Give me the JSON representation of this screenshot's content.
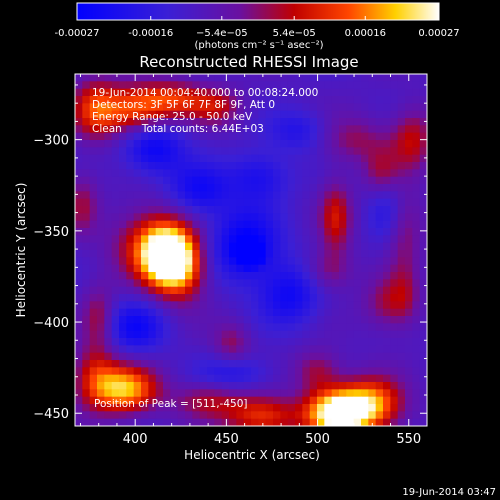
{
  "chart_data": {
    "type": "heatmap",
    "title": "Reconstructed RHESSI Image",
    "xlabel": "Heliocentric X (arcsec)",
    "ylabel": "Heliocentric Y (arcsec)",
    "xlim": [
      367,
      560
    ],
    "ylim": [
      -457,
      -264
    ],
    "x_ticks": [
      400,
      450,
      500,
      550
    ],
    "y_ticks": [
      -300,
      -350,
      -400,
      -450
    ],
    "colorbar": {
      "colormap": "blue-purple-red-yellow-white",
      "range": [
        -0.00027,
        0.00027
      ],
      "tick_values": [
        -0.00027,
        -0.00016,
        -5.4e-05,
        5.4e-05,
        0.00016,
        0.00027
      ],
      "tick_labels": [
        "-0.00027",
        "-0.00016",
        "−5.4e−05",
        "5.4e−05",
        "0.00016",
        "0.00027"
      ],
      "unit_label": "(photons cm⁻² s⁻¹ asec⁻²)"
    },
    "annotations": [
      "19-Jun-2014 00:04:40.000 to 00:08:24.000",
      "Detectors: 3F 5F 6F 7F 8F 9F, Att 0",
      "Energy Range: 25.0 - 50.0 keV",
      "Clean      Total counts: 6.44E+03"
    ],
    "peak_label": "Position of Peak = [511,-450]",
    "sources": [
      {
        "x": 418,
        "y": -364,
        "amp": 0.00036,
        "sx": 10,
        "sy": 11
      },
      {
        "x": 410,
        "y": -357,
        "amp": 0.00018,
        "sx": 15,
        "sy": 14
      },
      {
        "x": 425,
        "y": -373,
        "amp": 0.00016,
        "sx": 10,
        "sy": 12
      },
      {
        "x": 398,
        "y": -284,
        "amp": 0.0002,
        "sx": 13,
        "sy": 9
      },
      {
        "x": 420,
        "y": -278,
        "amp": 0.00018,
        "sx": 14,
        "sy": 7
      },
      {
        "x": 378,
        "y": -283,
        "amp": 0.00017,
        "sx": 9,
        "sy": 12
      },
      {
        "x": 445,
        "y": -282,
        "amp": 0.00012,
        "sx": 10,
        "sy": 7
      },
      {
        "x": 520,
        "y": -300,
        "amp": 0.0001,
        "sx": 14,
        "sy": 9
      },
      {
        "x": 552,
        "y": -300,
        "amp": 0.00014,
        "sx": 8,
        "sy": 12
      },
      {
        "x": 547,
        "y": -347,
        "amp": 0.00013,
        "sx": 7,
        "sy": 15
      },
      {
        "x": 510,
        "y": -343,
        "amp": 0.00015,
        "sx": 6,
        "sy": 14
      },
      {
        "x": 535,
        "y": -318,
        "amp": 0.0001,
        "sx": 7,
        "sy": 9
      },
      {
        "x": 538,
        "y": -390,
        "amp": 0.00011,
        "sx": 9,
        "sy": 10
      },
      {
        "x": 548,
        "y": -385,
        "amp": 8e-05,
        "sx": 6,
        "sy": 12
      },
      {
        "x": 506,
        "y": -372,
        "amp": 0.0001,
        "sx": 9,
        "sy": 8
      },
      {
        "x": 500,
        "y": -427,
        "amp": 0.00012,
        "sx": 9,
        "sy": 8
      },
      {
        "x": 511,
        "y": -450,
        "amp": 0.0004,
        "sx": 12,
        "sy": 9
      },
      {
        "x": 530,
        "y": -445,
        "amp": 0.00025,
        "sx": 12,
        "sy": 10
      },
      {
        "x": 470,
        "y": -452,
        "amp": 0.0002,
        "sx": 14,
        "sy": 8
      },
      {
        "x": 395,
        "y": -437,
        "amp": 0.00028,
        "sx": 12,
        "sy": 9
      },
      {
        "x": 378,
        "y": -430,
        "amp": 0.00016,
        "sx": 9,
        "sy": 12
      },
      {
        "x": 440,
        "y": -443,
        "amp": 0.00012,
        "sx": 14,
        "sy": 7
      },
      {
        "x": 453,
        "y": -412,
        "amp": 0.0001,
        "sx": 7,
        "sy": 8
      },
      {
        "x": 380,
        "y": -398,
        "amp": 0.00012,
        "sx": 6,
        "sy": 12
      },
      {
        "x": 371,
        "y": -335,
        "amp": 0.0001,
        "sx": 6,
        "sy": 12
      },
      {
        "x": 463,
        "y": -362,
        "amp": -0.00038,
        "sx": 4,
        "sy": 4
      },
      {
        "x": 460,
        "y": -358,
        "amp": -0.00018,
        "sx": 14,
        "sy": 14
      },
      {
        "x": 410,
        "y": -305,
        "amp": -0.00016,
        "sx": 12,
        "sy": 10
      },
      {
        "x": 435,
        "y": -328,
        "amp": -0.00014,
        "sx": 12,
        "sy": 10
      },
      {
        "x": 400,
        "y": -403,
        "amp": -0.00014,
        "sx": 12,
        "sy": 10
      },
      {
        "x": 485,
        "y": -385,
        "amp": -0.00014,
        "sx": 12,
        "sy": 12
      },
      {
        "x": 468,
        "y": -320,
        "amp": -0.00012,
        "sx": 12,
        "sy": 10
      },
      {
        "x": 540,
        "y": -340,
        "amp": -0.0001,
        "sx": 8,
        "sy": 14
      },
      {
        "x": 490,
        "y": -295,
        "amp": -0.0001,
        "sx": 12,
        "sy": 8
      },
      {
        "x": 455,
        "y": -428,
        "amp": -0.0001,
        "sx": 14,
        "sy": 7
      }
    ]
  },
  "footer_timestamp": "19-Jun-2014 03:47"
}
